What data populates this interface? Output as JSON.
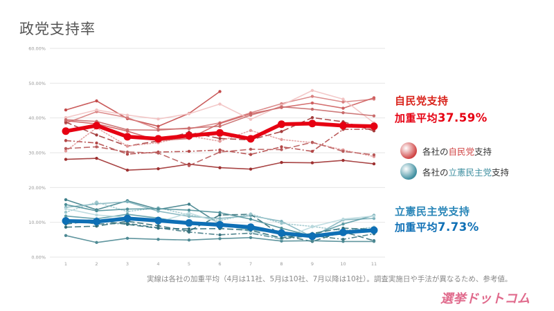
{
  "title": "政党支持率",
  "colors": {
    "ldp": "#e60012",
    "cdp": "#0e6fb5",
    "ldp_light": "#c9524f",
    "cdp_light": "#4a8a94"
  },
  "callouts": {
    "ldp": {
      "name": "自民党支持",
      "avg_prefix": "加重平均",
      "avg_value": "37.59%"
    },
    "cdp": {
      "name": "立憲民主党支持",
      "avg_prefix": "加重平均",
      "avg_value": "7.73%"
    }
  },
  "legend": [
    {
      "prefix": "各社の",
      "party": "自民党",
      "suffix": "支持",
      "color": "#d04545"
    },
    {
      "prefix": "各社の",
      "party": "立憲民主党",
      "suffix": "支持",
      "color": "#3f8fa0"
    }
  ],
  "footnote": "実線は各社の加重平均（4月は11社、5月は10社、7月以降は10社）。調査実施日や手法が異なるため、参考値。",
  "logo": "選挙ドットコム",
  "chart_data": {
    "type": "line",
    "x": [
      1,
      2,
      3,
      4,
      5,
      6,
      7,
      8,
      9,
      10,
      11
    ],
    "x_tick_labels": [
      "1",
      "2",
      "3",
      "4",
      "5",
      "6",
      "7",
      "8",
      "9",
      "10",
      "11"
    ],
    "y_tick_labels": [
      "0.00%",
      "10.00%",
      "20.00%",
      "30.00%",
      "40.00%",
      "50.00%",
      "60.00%"
    ],
    "ylim": [
      0,
      60
    ],
    "grid": true,
    "series": [
      {
        "party": "ldp",
        "weighted": true,
        "style": "solid",
        "values": [
          36.2,
          37.8,
          34.6,
          34.0,
          34.9,
          35.7,
          34.0,
          38.2,
          38.4,
          37.8,
          37.59
        ]
      },
      {
        "party": "ldp",
        "weighted": false,
        "style": "solid",
        "values": [
          42.3,
          44.9,
          39.8,
          37.6,
          41.3,
          47.6,
          null,
          null,
          null,
          null,
          null
        ]
      },
      {
        "party": "ldp",
        "weighted": false,
        "style": "solid",
        "values": [
          38.5,
          41.8,
          40.1,
          36.8,
          36.9,
          38.6,
          41.5,
          44.1,
          46.2,
          44.6,
          45.4
        ]
      },
      {
        "party": "ldp",
        "weighted": false,
        "style": "dashed",
        "values": [
          38.8,
          35.1,
          31.9,
          33.4,
          35.9,
          34.1,
          33.7,
          36.1,
          40.1,
          38.9,
          36.3
        ]
      },
      {
        "party": "ldp",
        "weighted": false,
        "style": "dashdot",
        "values": [
          33.5,
          32.8,
          29.6,
          30.2,
          30.4,
          30.8,
          29.5,
          31.7,
          30.4,
          36.7,
          36.8
        ]
      },
      {
        "party": "ldp",
        "weighted": false,
        "style": "solid",
        "values": [
          28.1,
          28.4,
          25.0,
          25.4,
          26.7,
          25.7,
          25.3,
          27.2,
          27.1,
          27.8,
          26.8
        ]
      },
      {
        "party": "ldp",
        "weighted": false,
        "style": "dotted",
        "values": [
          30.5,
          37.2,
          31.9,
          32.9,
          34.8,
          33.3,
          36.4,
          33.8,
          32.9,
          30.8,
          28.9
        ]
      },
      {
        "party": "ldp",
        "weighted": false,
        "style": "solid",
        "values": [
          39.2,
          38.3,
          36.2,
          33.5,
          34.1,
          38.4,
          41.2,
          43.0,
          44.3,
          42.8,
          45.8
        ]
      },
      {
        "party": "ldp",
        "weighted": false,
        "style": "solid",
        "values": [
          40.1,
          42.3,
          40.8,
          39.7,
          41.2,
          44.0,
          39.6,
          43.6,
          47.9,
          45.4,
          38.6
        ]
      },
      {
        "party": "ldp",
        "weighted": false,
        "style": "dashed",
        "values": [
          31.2,
          31.7,
          30.2,
          29.9,
          26.3,
          30.2,
          31.0,
          30.9,
          33.0,
          30.4,
          29.4
        ]
      },
      {
        "party": "ldp",
        "weighted": false,
        "style": "solid",
        "values": [
          39.5,
          39.0,
          36.6,
          36.5,
          37.1,
          37.6,
          40.8,
          43.2,
          42.5,
          41.5,
          40.6
        ]
      },
      {
        "party": "cdp",
        "weighted": true,
        "style": "solid",
        "values": [
          10.4,
          10.2,
          11.1,
          10.5,
          9.8,
          9.3,
          8.6,
          6.9,
          6.0,
          7.1,
          7.73
        ]
      },
      {
        "party": "cdp",
        "weighted": false,
        "style": "solid",
        "values": [
          16.5,
          13.6,
          16.2,
          13.7,
          15.2,
          9.5,
          null,
          null,
          null,
          null,
          null
        ]
      },
      {
        "party": "cdp",
        "weighted": false,
        "style": "solid",
        "values": [
          14.3,
          15.3,
          15.9,
          13.2,
          11.7,
          11.1,
          11.9,
          10.3,
          5.8,
          10.7,
          11.1
        ]
      },
      {
        "party": "cdp",
        "weighted": false,
        "style": "dashed",
        "values": [
          8.6,
          8.9,
          10.3,
          9.0,
          7.5,
          12.1,
          12.3,
          6.3,
          4.5,
          7.3,
          4.7
        ]
      },
      {
        "party": "cdp",
        "weighted": false,
        "style": "dashdot",
        "values": [
          10.8,
          9.5,
          9.7,
          8.4,
          7.2,
          6.4,
          6.9,
          5.2,
          6.2,
          5.1,
          6.7
        ]
      },
      {
        "party": "cdp",
        "weighted": false,
        "style": "solid",
        "values": [
          6.2,
          4.2,
          5.4,
          5.1,
          4.9,
          5.3,
          5.6,
          4.6,
          4.7,
          4.5,
          4.5
        ]
      },
      {
        "party": "cdp",
        "weighted": false,
        "style": "dotted",
        "values": [
          12.9,
          15.8,
          13.1,
          14.2,
          12.1,
          10.5,
          12.4,
          9.7,
          8.8,
          7.6,
          8.6
        ]
      },
      {
        "party": "cdp",
        "weighted": false,
        "style": "solid",
        "values": [
          11.8,
          11.0,
          12.3,
          11.2,
          9.8,
          9.2,
          7.9,
          6.8,
          6.3,
          9.5,
          12.0
        ]
      },
      {
        "party": "cdp",
        "weighted": false,
        "style": "solid",
        "values": [
          13.9,
          12.1,
          11.4,
          10.1,
          12.7,
          9.9,
          7.2,
          5.3,
          8.7,
          10.9,
          11.8
        ]
      },
      {
        "party": "cdp",
        "weighted": false,
        "style": "dashed",
        "values": [
          9.5,
          10.5,
          9.4,
          8.3,
          8.1,
          8.2,
          7.7,
          5.5,
          6.8,
          8.3,
          8.0
        ]
      },
      {
        "party": "cdp",
        "weighted": false,
        "style": "solid",
        "values": [
          15.1,
          13.3,
          13.8,
          13.9,
          13.5,
          12.8,
          10.9,
          8.3,
          6.0,
          6.6,
          8.1
        ]
      }
    ]
  }
}
